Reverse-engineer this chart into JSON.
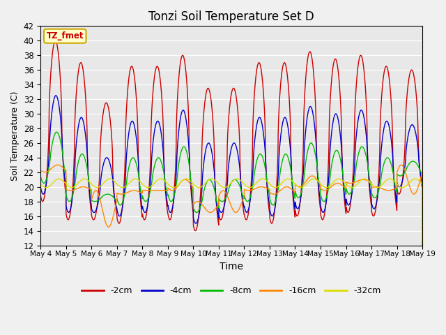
{
  "title": "Tonzi Soil Temperature Set D",
  "xlabel": "Time",
  "ylabel": "Soil Temperature (C)",
  "ylim": [
    12,
    42
  ],
  "yticks": [
    12,
    14,
    16,
    18,
    20,
    22,
    24,
    26,
    28,
    30,
    32,
    34,
    36,
    38,
    40,
    42
  ],
  "legend_labels": [
    "-2cm",
    "-4cm",
    "-8cm",
    "-16cm",
    "-32cm"
  ],
  "legend_colors": [
    "#cc0000",
    "#0000cc",
    "#00bb00",
    "#ff8800",
    "#dddd00"
  ],
  "label_box_text": "TZ_fmet",
  "label_box_facecolor": "#ffffcc",
  "label_box_edgecolor": "#ccaa00",
  "label_box_text_color": "#cc0000",
  "plot_bg_color": "#e8e8e8",
  "fig_bg_color": "#f0f0f0",
  "n_days": 15,
  "start_day": 4,
  "points_per_day": 288
}
